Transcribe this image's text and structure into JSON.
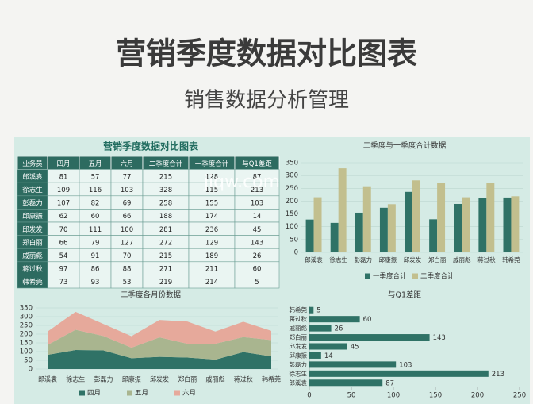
{
  "header": {
    "title": "营销季度数据对比图表",
    "subtitle": "销售数据分析管理"
  },
  "dashboard_title": "营销季度数据对比图表",
  "watermark": "jiqw.com",
  "table": {
    "header": [
      "业务员",
      "四月",
      "五月",
      "六月",
      "二季度合计",
      "一季度合计",
      "与Q1差距"
    ],
    "rows": [
      [
        "郎溪袁",
        "81",
        "57",
        "77",
        "215",
        "128",
        "87"
      ],
      [
        "徐志生",
        "109",
        "116",
        "103",
        "328",
        "115",
        "213"
      ],
      [
        "彭磊力",
        "107",
        "82",
        "69",
        "258",
        "155",
        "103"
      ],
      [
        "邱康振",
        "62",
        "60",
        "66",
        "188",
        "174",
        "14"
      ],
      [
        "邱发发",
        "70",
        "111",
        "100",
        "281",
        "236",
        "45"
      ],
      [
        "郑白丽",
        "66",
        "79",
        "127",
        "272",
        "129",
        "143"
      ],
      [
        "戚丽彪",
        "54",
        "91",
        "70",
        "215",
        "189",
        "26"
      ],
      [
        "蒋过秋",
        "97",
        "86",
        "88",
        "271",
        "211",
        "60"
      ],
      [
        "韩希莞",
        "73",
        "93",
        "53",
        "219",
        "214",
        "5"
      ]
    ]
  },
  "chart_data": [
    {
      "type": "bar",
      "title": "二季度与一季度合计数据",
      "categories": [
        "郎溪袁",
        "徐志生",
        "彭磊力",
        "邱康振",
        "邱发发",
        "郑白丽",
        "戚丽彪",
        "蒋过秋",
        "韩希莞"
      ],
      "series": [
        {
          "name": "一季度合计",
          "color": "#2f7266",
          "values": [
            128,
            115,
            155,
            174,
            236,
            129,
            189,
            211,
            214
          ]
        },
        {
          "name": "二季度合计",
          "color": "#c2bf8e",
          "values": [
            215,
            328,
            258,
            188,
            281,
            272,
            215,
            271,
            219
          ]
        }
      ],
      "ylim": [
        0,
        350
      ],
      "yticks": [
        0,
        50,
        100,
        150,
        200,
        250,
        300,
        350
      ]
    },
    {
      "type": "stacked-area",
      "title": "二季度各月份数据",
      "categories": [
        "郎溪袁",
        "徐志生",
        "彭磊力",
        "邱康振",
        "邱发发",
        "郑白丽",
        "戚丽彪",
        "蒋过秋",
        "韩希莞"
      ],
      "series": [
        {
          "name": "四月",
          "color": "#2f7266",
          "values": [
            81,
            109,
            107,
            62,
            70,
            66,
            54,
            97,
            73
          ]
        },
        {
          "name": "五月",
          "color": "#a9b58f",
          "values": [
            57,
            116,
            82,
            60,
            111,
            79,
            91,
            86,
            93
          ]
        },
        {
          "name": "六月",
          "color": "#e6a99b",
          "values": [
            77,
            103,
            69,
            66,
            100,
            127,
            70,
            88,
            53
          ]
        }
      ],
      "ylim": [
        0,
        350
      ],
      "yticks": [
        0,
        50,
        100,
        150,
        200,
        250,
        300,
        350
      ]
    },
    {
      "type": "hbar",
      "title": "与Q1差距",
      "color": "#2f7266",
      "categories": [
        "郎溪袁",
        "徐志生",
        "彭磊力",
        "邱康振",
        "邱发发",
        "郑白丽",
        "戚丽彪",
        "蒋过秋",
        "韩希莞"
      ],
      "values": [
        87,
        213,
        103,
        14,
        45,
        143,
        26,
        60,
        5
      ],
      "xlim": [
        0,
        250
      ],
      "xticks": [
        0,
        50,
        100,
        150,
        200,
        250
      ]
    }
  ]
}
